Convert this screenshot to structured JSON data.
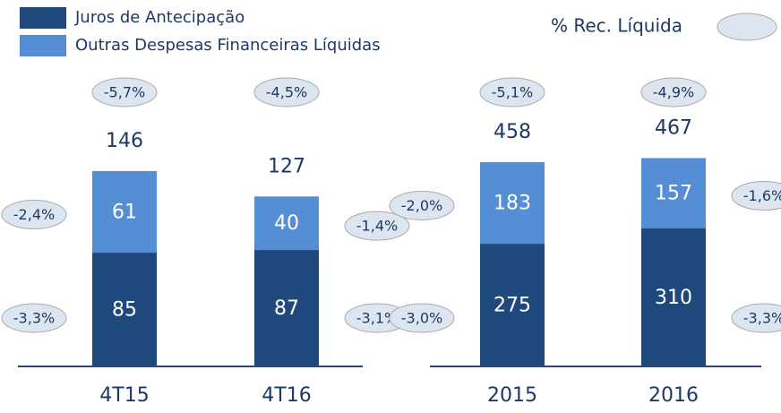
{
  "legend": {
    "series": [
      {
        "name": "Juros de Antecipação",
        "color": "#1f497d"
      },
      {
        "name": "Outras Despesas Financeiras Líquidas",
        "color": "#558ed5"
      }
    ],
    "pct_label": "% Rec. Líquida"
  },
  "chart_data": [
    {
      "type": "bar",
      "stacked": true,
      "categories": [
        "4T15",
        "4T16"
      ],
      "ylim": [
        0,
        160
      ],
      "series": [
        {
          "values": [
            85,
            87
          ],
          "pct_values": [
            -3.3,
            -3.1
          ],
          "pct_labels": [
            "-3,3%",
            "-3,1%"
          ]
        },
        {
          "values": [
            61,
            40
          ],
          "pct_values": [
            -2.4,
            -1.4
          ],
          "pct_labels": [
            "-2,4%",
            "-1,4%"
          ]
        }
      ],
      "totals": [
        146,
        127
      ],
      "total_pct_values": [
        -5.7,
        -4.5
      ],
      "total_pct_labels": [
        "-5,7%",
        "-4,5%"
      ]
    },
    {
      "type": "bar",
      "stacked": true,
      "categories": [
        "2015",
        "2016"
      ],
      "ylim": [
        0,
        480
      ],
      "series": [
        {
          "values": [
            275,
            310
          ],
          "pct_values": [
            -3.0,
            -3.3
          ],
          "pct_labels": [
            "-3,0%",
            "-3,3%"
          ]
        },
        {
          "values": [
            183,
            157
          ],
          "pct_values": [
            -2.0,
            -1.6
          ],
          "pct_labels": [
            "-2,0%",
            "-1,6%"
          ]
        }
      ],
      "totals": [
        458,
        467
      ],
      "total_pct_values": [
        -5.1,
        -4.9
      ],
      "total_pct_labels": [
        "-5,1%",
        "-4,9%"
      ]
    }
  ]
}
